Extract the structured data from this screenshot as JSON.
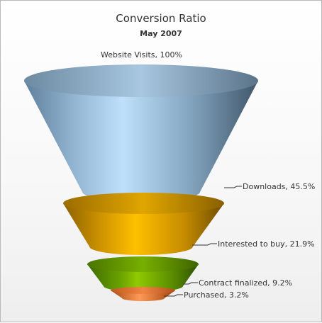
{
  "chart_data": {
    "type": "funnel",
    "title": "Conversion Ratio",
    "subtitle": "May 2007",
    "stages": [
      {
        "label": "Website Visits",
        "value": 100,
        "display": "Website Visits, 100%",
        "color": "#a9c7e4"
      },
      {
        "label": "Downloads",
        "value": 45.5,
        "display": "Downloads, 45.5%",
        "color": "#a9c7e4"
      },
      {
        "label": "Interested to buy",
        "value": 21.9,
        "display": "Interested to buy, 21.9%",
        "color": "#e0a800"
      },
      {
        "label": "Contract finalized",
        "value": 9.2,
        "display": "Contract finalized, 9.2%",
        "color": "#6fae00"
      },
      {
        "label": "Purchased",
        "value": 3.2,
        "display": "Purchased, 3.2%",
        "color": "#e8743a"
      }
    ]
  }
}
